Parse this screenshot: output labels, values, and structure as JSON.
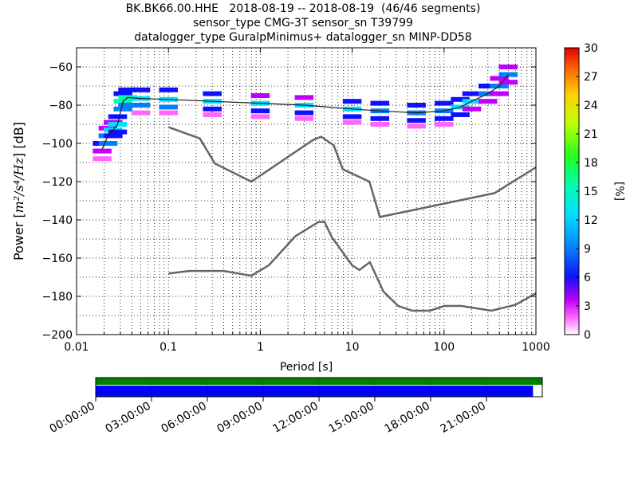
{
  "title": {
    "line1": "BK.BK66.00.HHE   2018-08-19 -- 2018-08-19  (46/46 segments)",
    "line2": "sensor_type CMG-3T sensor_sn T39799",
    "line3": "datalogger_type GuralpMinimus+ datalogger_sn MINP-DD58"
  },
  "colors": {
    "mode_line": "#1a1a1a",
    "noise_model": "#666666",
    "coverage_data": "#0000ff",
    "coverage_total": "#008000",
    "grid": "#000000"
  },
  "chart_data": [
    {
      "type": "heatmap",
      "subtype": "probabilistic power spectral density",
      "xlabel": "Period [s]",
      "ylabel_prefix": "Power [",
      "ylabel_units": "m²/s⁴/Hz",
      "ylabel_suffix": "] [dB]",
      "xscale": "log",
      "xlim": [
        0.01,
        1000
      ],
      "ylim": [
        -200,
        -50
      ],
      "x_ticks": [
        0.01,
        0.1,
        1,
        10,
        100,
        1000
      ],
      "x_tick_labels": [
        "0.01",
        "0.1",
        "1",
        "10",
        "100",
        "1000"
      ],
      "y_ticks": [
        -200,
        -180,
        -160,
        -140,
        -120,
        -100,
        -80,
        -60
      ],
      "y_tick_labels": [
        "−200",
        "−180",
        "−160",
        "−140",
        "−120",
        "−100",
        "−80",
        "−60"
      ],
      "grid": true,
      "colorbar": {
        "label": "[%]",
        "range": [
          0,
          30
        ],
        "ticks": [
          "0",
          "3",
          "6",
          "9",
          "12",
          "15",
          "18",
          "21",
          "24",
          "27",
          "30"
        ]
      },
      "series": [
        {
          "kind": "mode",
          "x": [
            0.019,
            0.022,
            0.025,
            0.028,
            0.032,
            0.036,
            0.05,
            0.1,
            0.3,
            1,
            3,
            10,
            20,
            50,
            100,
            150,
            200,
            300,
            400,
            500
          ],
          "y": [
            -103,
            -96,
            -93,
            -90,
            -78,
            -76,
            -76.5,
            -77,
            -78,
            -79,
            -80,
            -82,
            -83,
            -84,
            -83,
            -81,
            -78,
            -74,
            -70,
            -64
          ]
        },
        {
          "kind": "noise_model_high",
          "x": [
            0.1,
            0.22,
            0.32,
            0.8,
            3.8,
            4.6,
            6.3,
            7.9,
            15.4,
            20,
            354.8,
            1000
          ],
          "y": [
            -91.5,
            -97.4,
            -110.5,
            -120,
            -98,
            -96.5,
            -101,
            -113.5,
            -120,
            -138.5,
            -126,
            -112.5
          ]
        },
        {
          "kind": "noise_model_low",
          "x": [
            0.1,
            0.17,
            0.4,
            0.8,
            1.24,
            2.4,
            4.3,
            5,
            6,
            10,
            12,
            15.6,
            21.9,
            31.6,
            45,
            70,
            101,
            154,
            328,
            600,
            1000
          ],
          "y": [
            -168,
            -166.7,
            -166.7,
            -169.2,
            -163.7,
            -148.6,
            -141.1,
            -141.1,
            -149,
            -163.8,
            -166.2,
            -162.1,
            -177.5,
            -185,
            -187.5,
            -187.5,
            -185,
            -185,
            -187.5,
            -184.4,
            -178.4
          ]
        }
      ],
      "heatmap_bins": [
        [
          0.019,
          -100,
          8
        ],
        [
          0.019,
          -104,
          5
        ],
        [
          0.019,
          -108,
          2
        ],
        [
          0.022,
          -96,
          12
        ],
        [
          0.022,
          -100,
          9
        ],
        [
          0.022,
          -92,
          5
        ],
        [
          0.025,
          -93,
          14
        ],
        [
          0.025,
          -96,
          8
        ],
        [
          0.025,
          -89,
          4
        ],
        [
          0.028,
          -90,
          15
        ],
        [
          0.028,
          -86,
          6
        ],
        [
          0.028,
          -94,
          6
        ],
        [
          0.032,
          -78,
          16
        ],
        [
          0.032,
          -82,
          10
        ],
        [
          0.032,
          -74,
          6
        ],
        [
          0.036,
          -76,
          18
        ],
        [
          0.036,
          -72,
          8
        ],
        [
          0.036,
          -80,
          9
        ],
        [
          0.05,
          -76.5,
          15
        ],
        [
          0.05,
          -72,
          7
        ],
        [
          0.05,
          -80,
          9
        ],
        [
          0.05,
          -84,
          3
        ],
        [
          0.1,
          -77,
          15
        ],
        [
          0.1,
          -72,
          6
        ],
        [
          0.1,
          -81,
          9
        ],
        [
          0.1,
          -84,
          3
        ],
        [
          0.3,
          -78,
          14
        ],
        [
          0.3,
          -74,
          6
        ],
        [
          0.3,
          -82,
          8
        ],
        [
          0.3,
          -85,
          3
        ],
        [
          1,
          -79,
          14
        ],
        [
          1,
          -75,
          5
        ],
        [
          1,
          -83,
          8
        ],
        [
          1,
          -86,
          3
        ],
        [
          3,
          -80,
          13
        ],
        [
          3,
          -76,
          5
        ],
        [
          3,
          -84,
          8
        ],
        [
          3,
          -87,
          3
        ],
        [
          10,
          -82,
          13
        ],
        [
          10,
          -78,
          6
        ],
        [
          10,
          -86,
          8
        ],
        [
          10,
          -89,
          3
        ],
        [
          20,
          -83,
          12
        ],
        [
          20,
          -79,
          6
        ],
        [
          20,
          -87,
          7
        ],
        [
          20,
          -90,
          3
        ],
        [
          50,
          -84,
          12
        ],
        [
          50,
          -80,
          6
        ],
        [
          50,
          -88,
          7
        ],
        [
          50,
          -91,
          3
        ],
        [
          100,
          -83,
          12
        ],
        [
          100,
          -79,
          6
        ],
        [
          100,
          -87,
          7
        ],
        [
          100,
          -90,
          3
        ],
        [
          150,
          -81,
          13
        ],
        [
          150,
          -77,
          6
        ],
        [
          150,
          -85,
          6
        ],
        [
          200,
          -78,
          13
        ],
        [
          200,
          -74,
          6
        ],
        [
          200,
          -82,
          5
        ],
        [
          300,
          -74,
          12
        ],
        [
          300,
          -70,
          6
        ],
        [
          300,
          -78,
          5
        ],
        [
          400,
          -70,
          10
        ],
        [
          400,
          -66,
          5
        ],
        [
          400,
          -74,
          4
        ],
        [
          500,
          -64,
          9
        ],
        [
          500,
          -60,
          4
        ],
        [
          500,
          -68,
          5
        ]
      ]
    },
    {
      "type": "timeline",
      "subtype": "data coverage",
      "x_tick_labels": [
        "00:00:00",
        "03:00:00",
        "06:00:00",
        "09:00:00",
        "12:00:00",
        "15:00:00",
        "18:00:00",
        "21:00:00"
      ],
      "x_tick_hours": [
        0,
        3,
        6,
        9,
        12,
        15,
        18,
        21
      ],
      "range_hours": [
        0,
        24
      ],
      "series": [
        {
          "kind": "total_coverage",
          "start_hour": 0,
          "end_hour": 24
        },
        {
          "kind": "used_data",
          "start_hour": 0,
          "end_hour": 23.5
        }
      ]
    }
  ]
}
